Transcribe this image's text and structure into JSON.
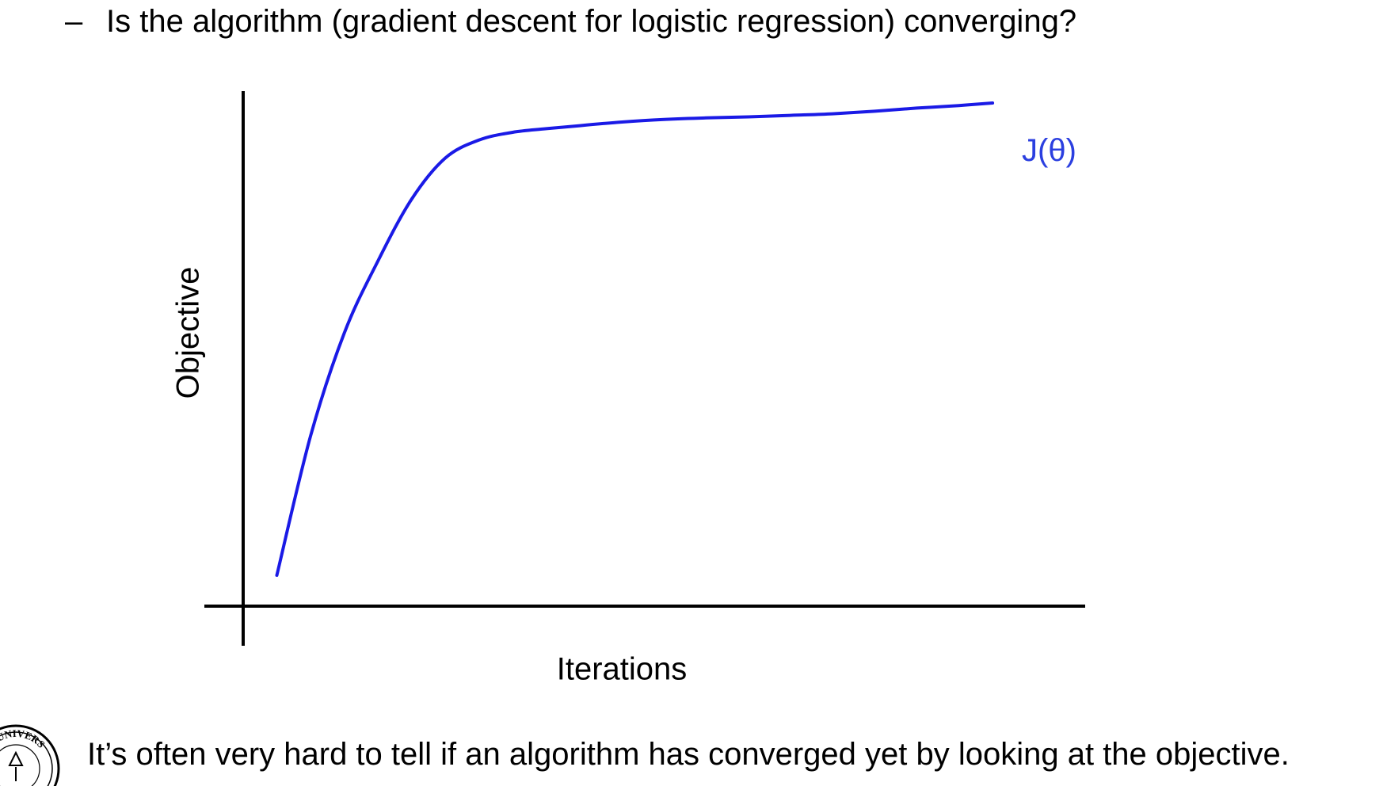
{
  "bullet": {
    "dash": "–",
    "text": "Is the algorithm (gradient descent for logistic regression) converging?"
  },
  "footer": {
    "text": "It’s often very hard to tell if an algorithm has converged yet by looking at the objective."
  },
  "seal": {
    "text": "NIOR UNIVERS"
  },
  "chart_data": {
    "type": "line",
    "title": "",
    "xlabel": "Iterations",
    "ylabel": "Objective",
    "grid": false,
    "ticks": false,
    "xlim": [
      0,
      100
    ],
    "ylim": [
      0,
      100
    ],
    "series": [
      {
        "name": "J(θ)",
        "color": "#1a1ae6",
        "x": [
          4,
          8,
          12,
          16,
          20,
          24,
          28,
          32,
          36,
          40,
          45,
          50,
          55,
          60,
          65,
          70,
          75,
          80,
          85,
          89
        ],
        "y": [
          6,
          33,
          53,
          67,
          79,
          87,
          90.5,
          92,
          92.7,
          93.3,
          94,
          94.5,
          94.8,
          95,
          95.3,
          95.6,
          96.1,
          96.7,
          97.2,
          97.7
        ]
      }
    ],
    "colors": {
      "axis": "#000000",
      "label": "#2b3fe0"
    }
  }
}
